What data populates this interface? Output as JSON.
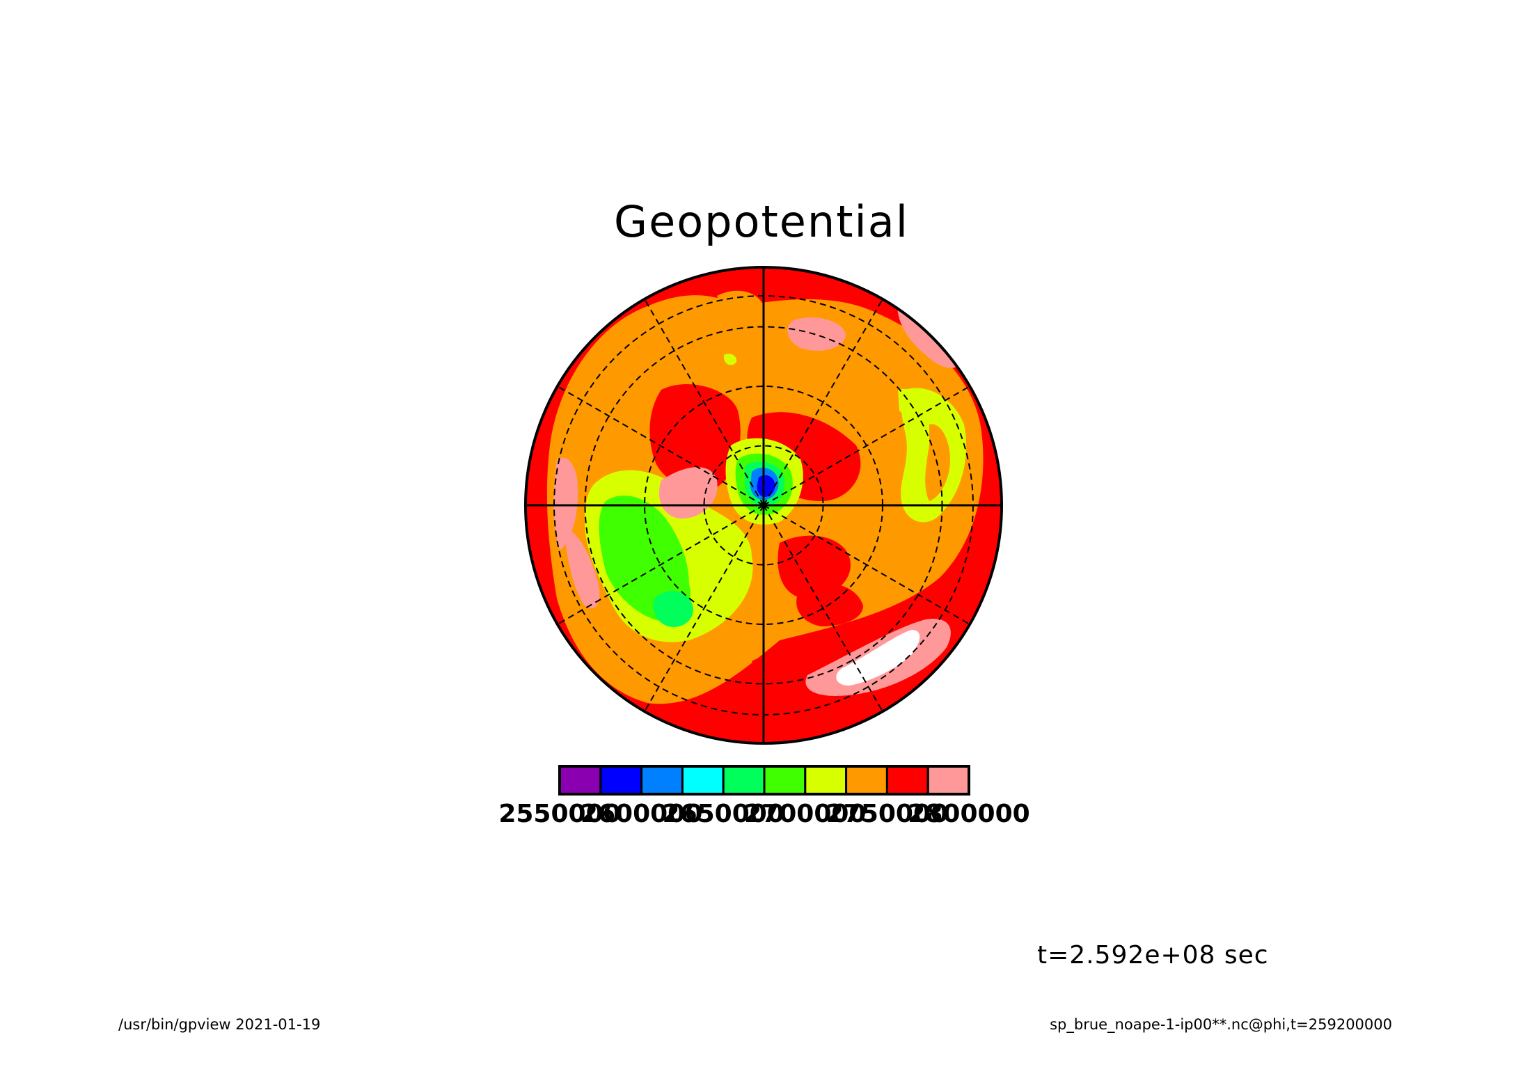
{
  "chart_data": {
    "type": "heatmap",
    "title": "Geopotential",
    "projection": "polar stereographic",
    "colorbar": {
      "levels": [
        2550000,
        2600000,
        2650000,
        2700000,
        2750000,
        2800000
      ],
      "tick_labels": [
        "2550000",
        "2600000",
        "2650000",
        "2700000",
        "2750000",
        "2800000"
      ],
      "colors": [
        "#8a00b0",
        "#0000ff",
        "#0080ff",
        "#00ffff",
        "#00ff5a",
        "#40ff00",
        "#d8ff00",
        "#ff9900",
        "#ff0000",
        "#ff9999"
      ]
    },
    "field_note_colors": {
      "above_top": "#ffffff"
    },
    "grid": true,
    "time_label": "t=2.592e+08 sec"
  },
  "footer": {
    "left": "/usr/bin/gpview  2021-01-19",
    "right": "sp_brue_noape-1-ip00**.nc@phi,t=259200000"
  }
}
